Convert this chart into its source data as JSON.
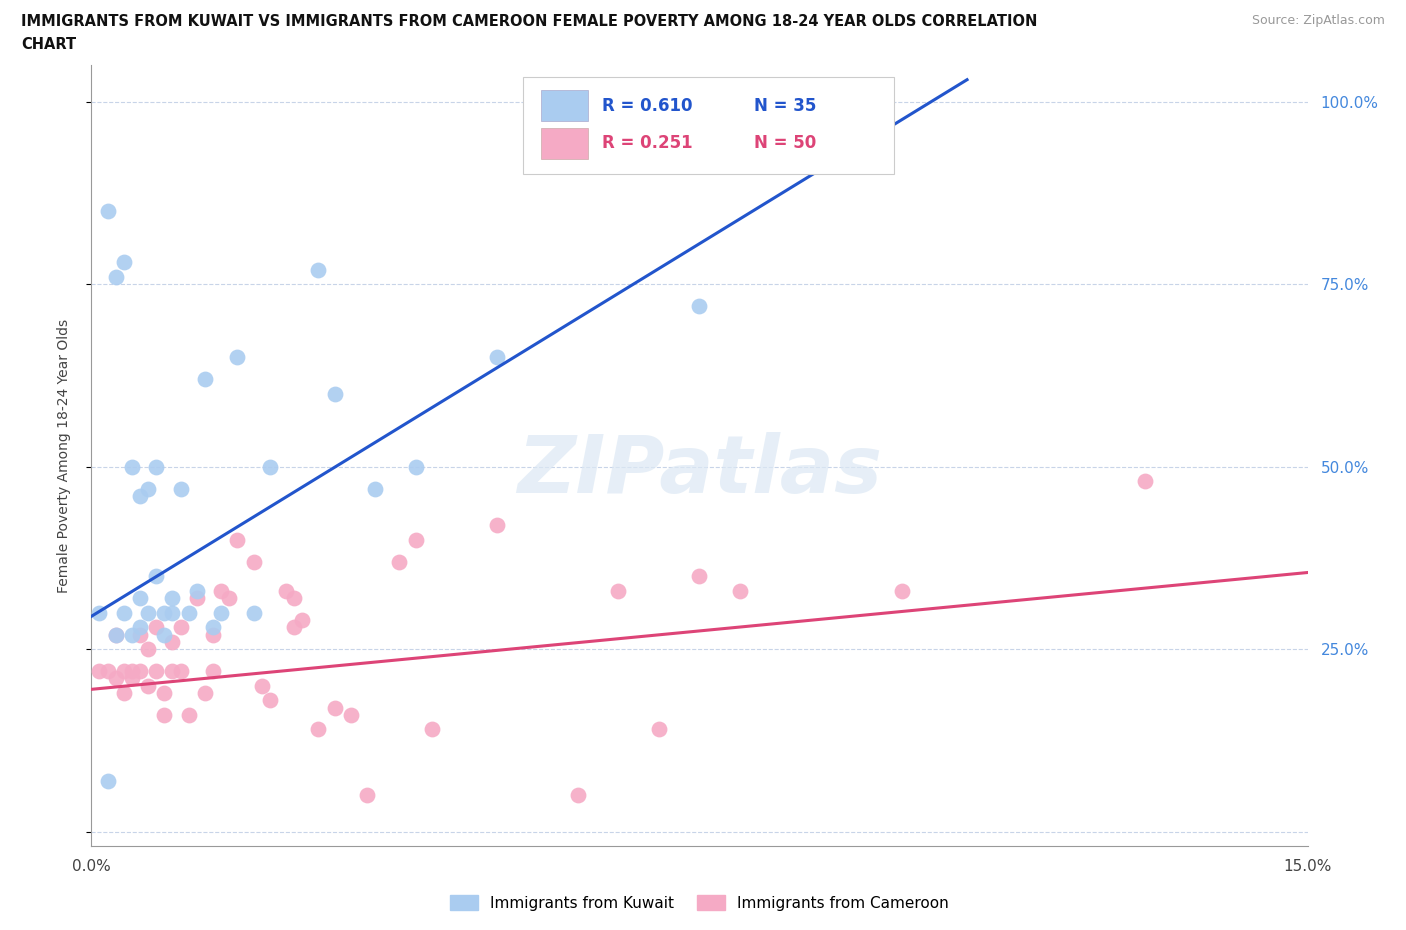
{
  "title_line1": "IMMIGRANTS FROM KUWAIT VS IMMIGRANTS FROM CAMEROON FEMALE POVERTY AMONG 18-24 YEAR OLDS CORRELATION",
  "title_line2": "CHART",
  "source_text": "Source: ZipAtlas.com",
  "ylabel": "Female Poverty Among 18-24 Year Olds",
  "xlim": [
    0.0,
    0.15
  ],
  "ylim": [
    -0.02,
    1.05
  ],
  "yticks": [
    0.0,
    0.25,
    0.5,
    0.75,
    1.0
  ],
  "ytick_labels_right": [
    "",
    "25.0%",
    "50.0%",
    "75.0%",
    "100.0%"
  ],
  "xtick_labels": [
    "0.0%",
    "15.0%"
  ],
  "background_color": "#ffffff",
  "watermark_text": "ZIPatlas",
  "kuwait_dot_color": "#aaccf0",
  "cameroon_dot_color": "#f5aac5",
  "kuwait_line_color": "#2255cc",
  "cameroon_line_color": "#dd4477",
  "kuwait_R": 0.61,
  "kuwait_N": 35,
  "cameroon_R": 0.251,
  "cameroon_N": 50,
  "kuwait_line_x": [
    0.0,
    0.108
  ],
  "kuwait_line_y": [
    0.295,
    1.03
  ],
  "cameroon_line_x": [
    0.0,
    0.15
  ],
  "cameroon_line_y": [
    0.195,
    0.355
  ],
  "kuwait_scatter_x": [
    0.001,
    0.002,
    0.003,
    0.003,
    0.004,
    0.004,
    0.005,
    0.005,
    0.006,
    0.006,
    0.006,
    0.007,
    0.007,
    0.008,
    0.008,
    0.009,
    0.009,
    0.01,
    0.01,
    0.011,
    0.012,
    0.013,
    0.014,
    0.015,
    0.016,
    0.018,
    0.02,
    0.022,
    0.028,
    0.03,
    0.035,
    0.04,
    0.05,
    0.075,
    0.002
  ],
  "kuwait_scatter_y": [
    0.3,
    0.85,
    0.27,
    0.76,
    0.3,
    0.78,
    0.27,
    0.5,
    0.28,
    0.32,
    0.46,
    0.3,
    0.47,
    0.35,
    0.5,
    0.27,
    0.3,
    0.3,
    0.32,
    0.47,
    0.3,
    0.33,
    0.62,
    0.28,
    0.3,
    0.65,
    0.3,
    0.5,
    0.77,
    0.6,
    0.47,
    0.5,
    0.65,
    0.72,
    0.07
  ],
  "cameroon_scatter_x": [
    0.001,
    0.002,
    0.003,
    0.003,
    0.004,
    0.004,
    0.005,
    0.005,
    0.006,
    0.006,
    0.007,
    0.007,
    0.008,
    0.008,
    0.009,
    0.009,
    0.01,
    0.01,
    0.011,
    0.011,
    0.012,
    0.013,
    0.014,
    0.015,
    0.015,
    0.016,
    0.017,
    0.018,
    0.02,
    0.021,
    0.022,
    0.024,
    0.025,
    0.025,
    0.026,
    0.028,
    0.03,
    0.032,
    0.034,
    0.038,
    0.04,
    0.042,
    0.05,
    0.06,
    0.065,
    0.07,
    0.075,
    0.08,
    0.1,
    0.13
  ],
  "cameroon_scatter_y": [
    0.22,
    0.22,
    0.21,
    0.27,
    0.19,
    0.22,
    0.22,
    0.21,
    0.27,
    0.22,
    0.2,
    0.25,
    0.22,
    0.28,
    0.19,
    0.16,
    0.22,
    0.26,
    0.28,
    0.22,
    0.16,
    0.32,
    0.19,
    0.27,
    0.22,
    0.33,
    0.32,
    0.4,
    0.37,
    0.2,
    0.18,
    0.33,
    0.32,
    0.28,
    0.29,
    0.14,
    0.17,
    0.16,
    0.05,
    0.37,
    0.4,
    0.14,
    0.42,
    0.05,
    0.33,
    0.14,
    0.35,
    0.33,
    0.33,
    0.48
  ],
  "grid_color": "#c8d4e8",
  "legend_kuwait_label": "Immigrants from Kuwait",
  "legend_cameroon_label": "Immigrants from Cameroon"
}
